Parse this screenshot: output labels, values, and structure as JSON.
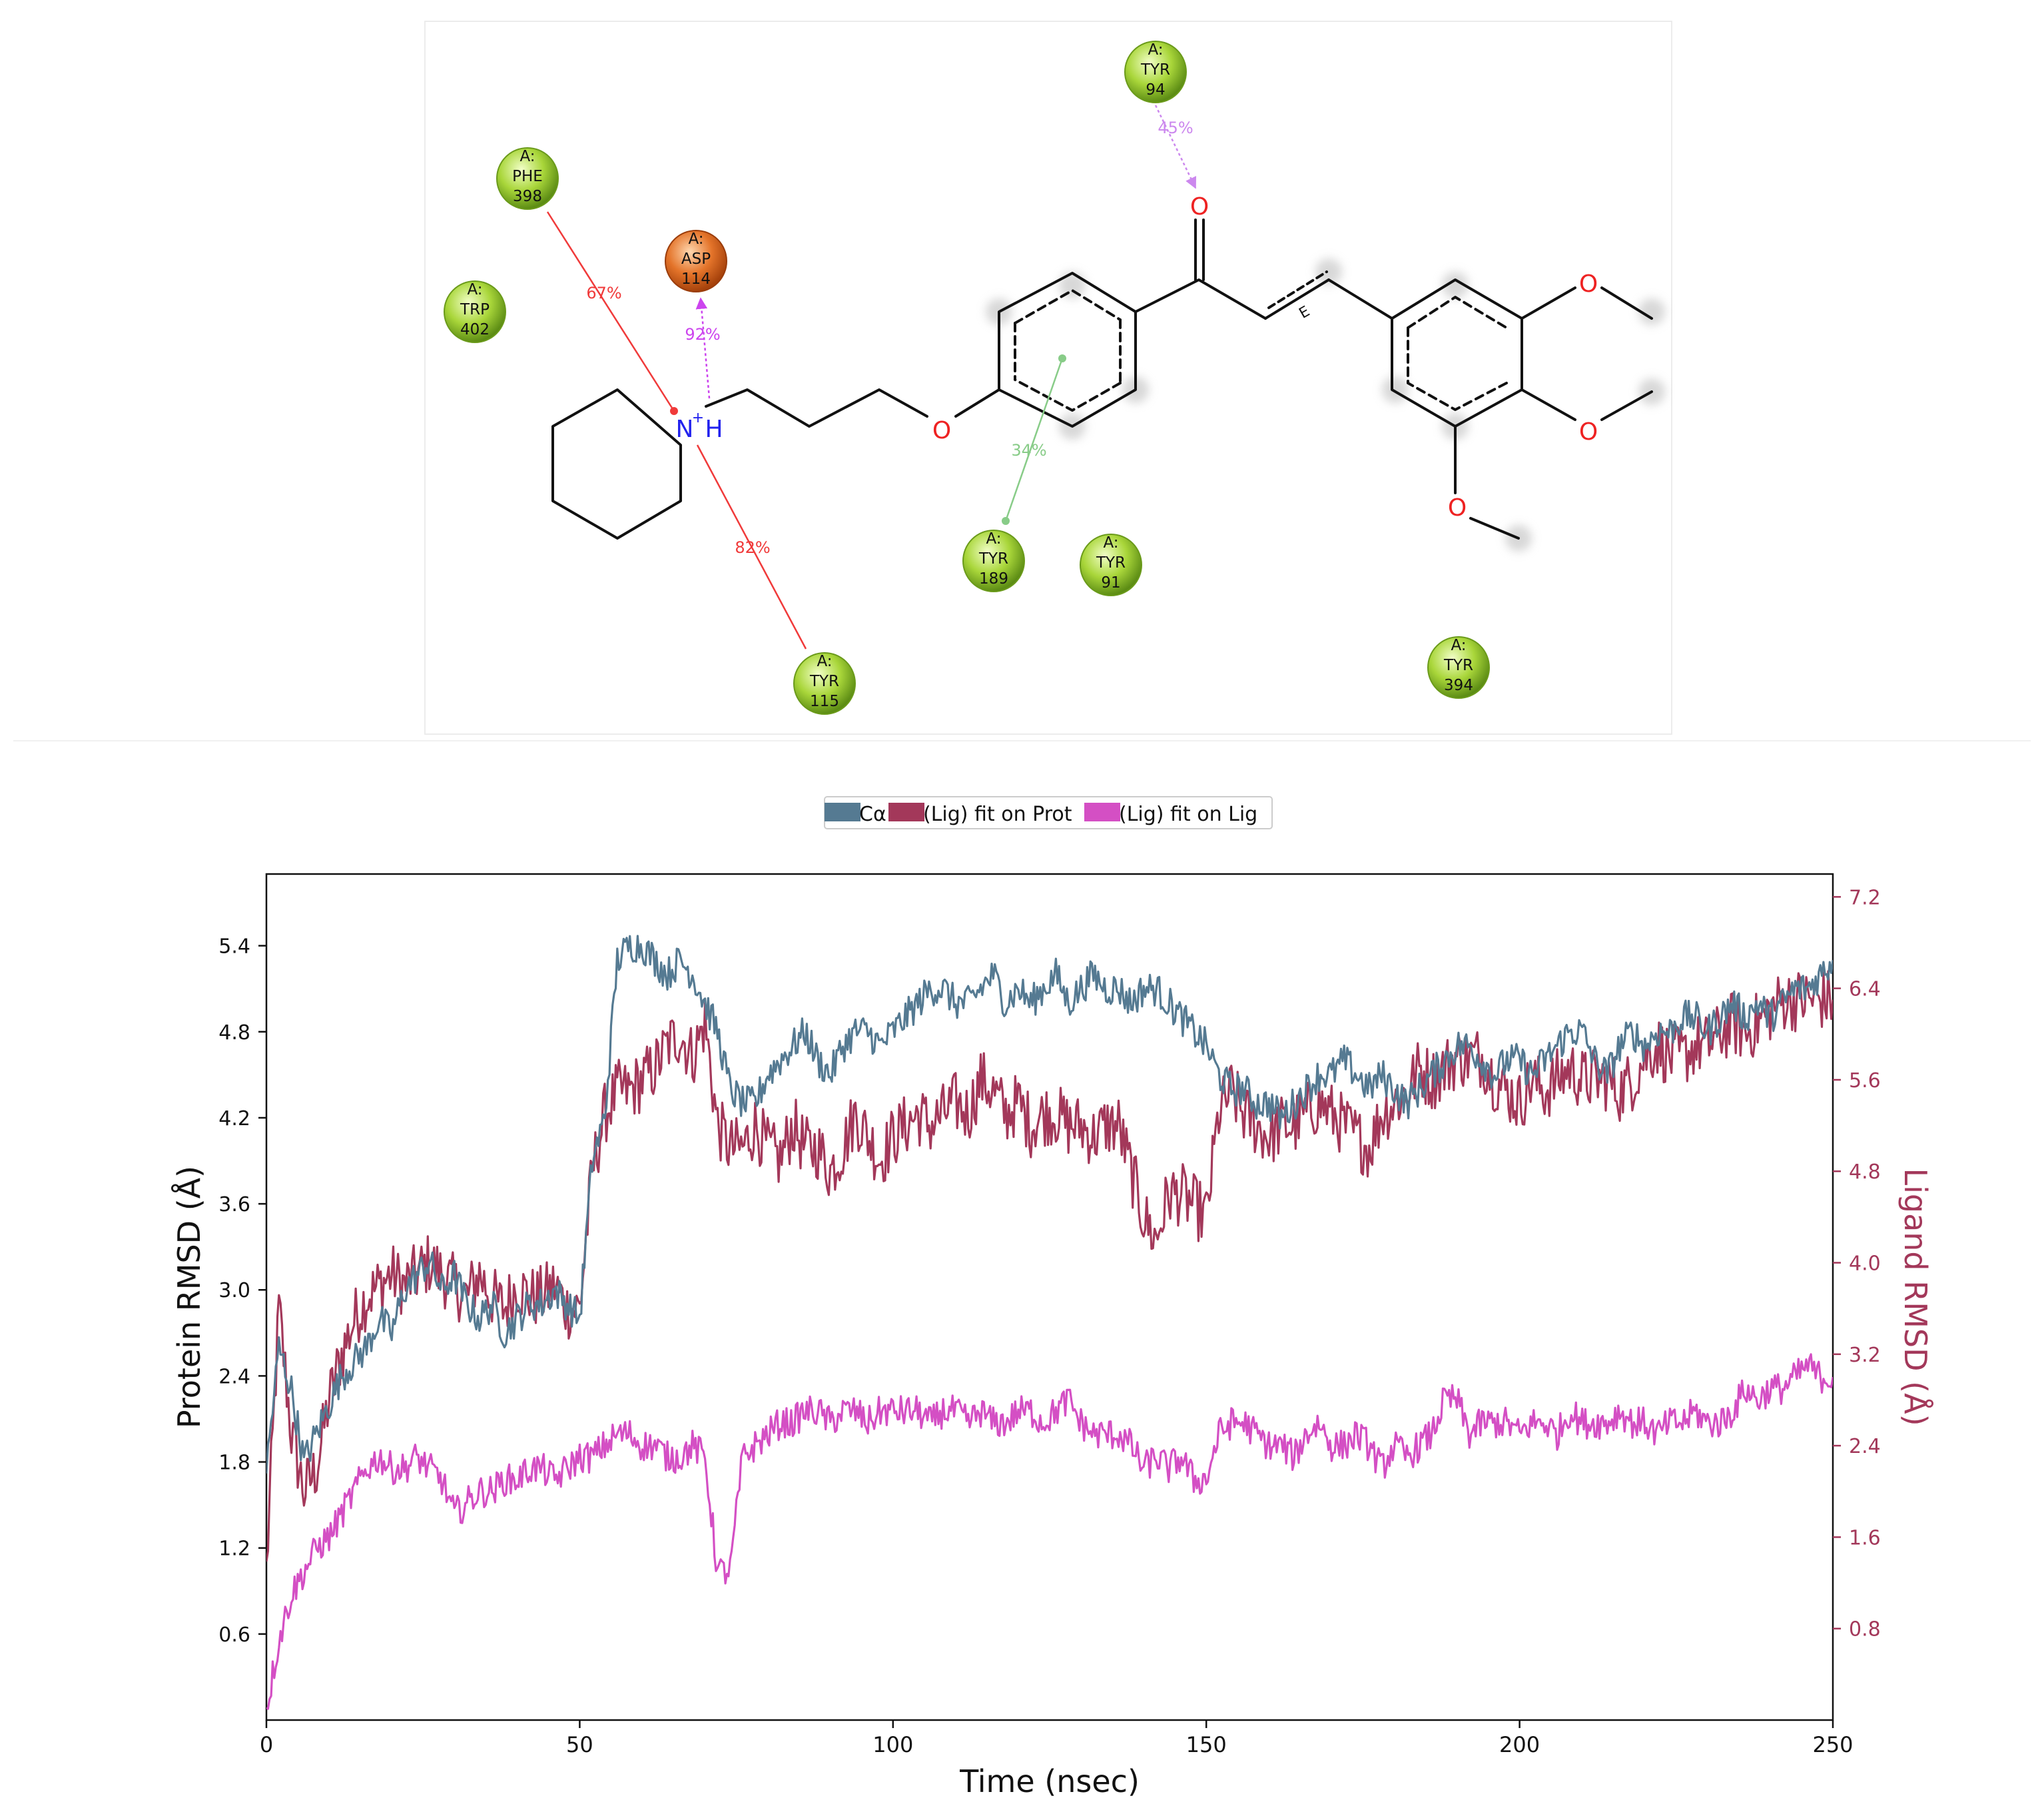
{
  "interaction_diagram": {
    "residues": [
      {
        "chain": "A:",
        "name": "TYR",
        "number": "94",
        "kind": "hydrophobic"
      },
      {
        "chain": "A:",
        "name": "PHE",
        "number": "398",
        "kind": "hydrophobic"
      },
      {
        "chain": "A:",
        "name": "ASP",
        "number": "114",
        "kind": "negative"
      },
      {
        "chain": "A:",
        "name": "TRP",
        "number": "402",
        "kind": "hydrophobic"
      },
      {
        "chain": "A:",
        "name": "TYR",
        "number": "189",
        "kind": "hydrophobic"
      },
      {
        "chain": "A:",
        "name": "TYR",
        "number": "91",
        "kind": "hydrophobic"
      },
      {
        "chain": "A:",
        "name": "TYR",
        "number": "115",
        "kind": "hydrophobic"
      },
      {
        "chain": "A:",
        "name": "TYR",
        "number": "394",
        "kind": "hydrophobic"
      }
    ],
    "interactions": [
      {
        "label": "45%",
        "type": "h-bond",
        "from": "TYR 94",
        "to": "O (carbonyl)"
      },
      {
        "label": "67%",
        "type": "pi-cation",
        "from": "PHE 398",
        "to": "N+H"
      },
      {
        "label": "92%",
        "type": "salt-bridge",
        "from": "N+H",
        "to": "ASP 114"
      },
      {
        "label": "82%",
        "type": "pi-cation",
        "from": "TYR 115",
        "to": "N+H"
      },
      {
        "label": "34%",
        "type": "pi-pi",
        "from": "TYR 189",
        "to": "phenyl ring"
      }
    ],
    "atom_labels": {
      "n": "N",
      "n_charge": "+",
      "n_h": "H",
      "oxygen": "O",
      "stereo": "E"
    },
    "colors": {
      "hydrophobic": "#9ccc28",
      "negative": "#e06a1e",
      "pi_cation": "#f03a3a",
      "salt_bridge": "#cc44ee",
      "hbond": "#cc88ee",
      "pi_pi": "#88cc88",
      "oxygen": "#ee2222",
      "nitrogen": "#2222ee"
    }
  },
  "chart_data": {
    "type": "line",
    "xlabel": "Time (nsec)",
    "ylabel_left": "Protein RMSD (Å)",
    "ylabel_right": "Ligand RMSD (Å)",
    "xlim": [
      0,
      250
    ],
    "ylim_left": [
      0.0,
      5.9
    ],
    "ylim_right": [
      0.0,
      7.4
    ],
    "x_ticks": [
      "0",
      "50",
      "100",
      "150",
      "200",
      "250"
    ],
    "y_ticks_left": [
      "0.6",
      "1.2",
      "1.8",
      "2.4",
      "3.0",
      "3.6",
      "4.2",
      "4.8",
      "5.4"
    ],
    "y_ticks_right": [
      "0.8",
      "1.6",
      "2.4",
      "3.2",
      "4.0",
      "4.8",
      "5.6",
      "6.4",
      "7.2"
    ],
    "legend": {
      "placement": "top-center",
      "entries": [
        "Cα",
        "(Lig) fit on Prot",
        "(Lig) fit on Lig"
      ]
    },
    "grid": false,
    "series": [
      {
        "name": "Cα",
        "axis": "left",
        "color": "#557a92",
        "x": [
          0,
          2,
          4,
          6,
          8,
          10,
          12,
          14,
          16,
          18,
          20,
          22,
          24,
          26,
          28,
          30,
          32,
          34,
          36,
          38,
          40,
          42,
          44,
          46,
          48,
          50,
          52,
          54,
          56,
          58,
          60,
          62,
          64,
          66,
          68,
          70,
          72,
          74,
          76,
          78,
          80,
          82,
          84,
          86,
          88,
          90,
          92,
          94,
          96,
          98,
          100,
          102,
          104,
          106,
          108,
          110,
          112,
          114,
          116,
          118,
          120,
          122,
          124,
          126,
          128,
          130,
          132,
          134,
          136,
          138,
          140,
          142,
          144,
          146,
          148,
          150,
          152,
          154,
          156,
          158,
          160,
          162,
          164,
          166,
          168,
          170,
          172,
          174,
          176,
          178,
          180,
          182,
          184,
          186,
          188,
          190,
          192,
          194,
          196,
          198,
          200,
          202,
          204,
          206,
          208,
          210,
          212,
          214,
          216,
          218,
          220,
          222,
          224,
          226,
          228,
          230,
          232,
          234,
          236,
          238,
          240,
          242,
          244,
          246,
          248,
          250
        ],
        "y": [
          1.75,
          2.6,
          2.3,
          1.8,
          2.0,
          2.2,
          2.4,
          2.5,
          2.6,
          2.8,
          2.7,
          3.0,
          3.1,
          3.2,
          3.0,
          3.1,
          2.9,
          2.8,
          2.9,
          2.7,
          2.8,
          2.9,
          2.9,
          3.0,
          2.9,
          2.8,
          3.9,
          4.2,
          5.3,
          5.4,
          5.4,
          5.3,
          5.2,
          5.3,
          5.2,
          5.0,
          4.8,
          4.4,
          4.3,
          4.3,
          4.5,
          4.6,
          4.7,
          4.8,
          4.6,
          4.5,
          4.7,
          4.8,
          4.8,
          4.7,
          4.8,
          4.9,
          5.0,
          5.1,
          5.1,
          5.0,
          5.0,
          5.1,
          5.2,
          5.0,
          5.1,
          5.0,
          5.1,
          5.2,
          5.0,
          5.1,
          5.2,
          5.1,
          5.1,
          5.0,
          5.1,
          5.1,
          5.0,
          4.9,
          4.8,
          4.7,
          4.5,
          4.4,
          4.4,
          4.3,
          4.3,
          4.2,
          4.3,
          4.4,
          4.5,
          4.5,
          4.6,
          4.5,
          4.4,
          4.5,
          4.4,
          4.3,
          4.4,
          4.5,
          4.6,
          4.7,
          4.7,
          4.6,
          4.5,
          4.6,
          4.6,
          4.5,
          4.6,
          4.7,
          4.8,
          4.8,
          4.6,
          4.5,
          4.7,
          4.8,
          4.7,
          4.8,
          4.8,
          4.9,
          4.9,
          4.8,
          4.9,
          5.0,
          4.9,
          5.0,
          4.9,
          5.0,
          5.1,
          5.1,
          5.2,
          5.3
        ]
      },
      {
        "name": "(Lig) fit on Prot",
        "axis": "right",
        "color": "#a3385a",
        "x": [
          0,
          2,
          4,
          6,
          8,
          10,
          12,
          14,
          16,
          18,
          20,
          22,
          24,
          26,
          28,
          30,
          32,
          34,
          36,
          38,
          40,
          42,
          44,
          46,
          48,
          50,
          52,
          54,
          56,
          58,
          60,
          62,
          64,
          66,
          68,
          70,
          72,
          74,
          76,
          78,
          80,
          82,
          84,
          86,
          88,
          90,
          92,
          94,
          96,
          98,
          100,
          102,
          104,
          106,
          108,
          110,
          112,
          114,
          116,
          118,
          120,
          122,
          124,
          126,
          128,
          130,
          132,
          134,
          136,
          138,
          140,
          142,
          144,
          146,
          148,
          150,
          152,
          154,
          156,
          158,
          160,
          162,
          164,
          166,
          168,
          170,
          172,
          174,
          176,
          178,
          180,
          182,
          184,
          186,
          188,
          190,
          192,
          194,
          196,
          198,
          200,
          202,
          204,
          206,
          208,
          210,
          212,
          214,
          216,
          218,
          220,
          222,
          224,
          226,
          228,
          230,
          232,
          234,
          236,
          238,
          240,
          242,
          244,
          246,
          248,
          250
        ],
        "y": [
          1.3,
          3.6,
          2.5,
          2.0,
          2.2,
          2.8,
          3.2,
          3.5,
          3.7,
          3.8,
          3.9,
          3.8,
          3.9,
          4.0,
          3.9,
          3.8,
          3.7,
          3.9,
          3.7,
          3.6,
          3.8,
          3.7,
          3.7,
          3.8,
          3.6,
          3.6,
          4.8,
          5.3,
          5.5,
          5.5,
          5.6,
          5.7,
          5.9,
          6.0,
          5.8,
          6.1,
          5.2,
          5.0,
          5.0,
          5.2,
          5.0,
          4.9,
          5.2,
          5.0,
          5.0,
          4.8,
          5.0,
          5.3,
          5.1,
          4.9,
          5.1,
          5.2,
          5.3,
          5.2,
          5.3,
          5.4,
          5.3,
          5.6,
          5.5,
          5.3,
          5.4,
          5.2,
          5.3,
          5.3,
          5.2,
          5.2,
          5.1,
          5.2,
          5.2,
          4.8,
          4.4,
          4.2,
          4.6,
          4.6,
          4.5,
          4.4,
          5.3,
          5.5,
          5.3,
          5.2,
          5.1,
          5.2,
          5.2,
          5.3,
          5.4,
          5.3,
          5.2,
          5.1,
          5.0,
          5.3,
          5.4,
          5.5,
          5.7,
          5.6,
          5.7,
          5.8,
          5.8,
          5.8,
          5.6,
          5.5,
          5.4,
          5.6,
          5.5,
          5.6,
          5.7,
          5.6,
          5.6,
          5.6,
          5.5,
          5.6,
          5.8,
          5.9,
          5.8,
          5.8,
          5.9,
          5.9,
          6.0,
          6.1,
          6.0,
          6.1,
          6.2,
          6.3,
          6.3,
          6.3,
          6.3,
          6.3
        ]
      },
      {
        "name": "(Lig) fit on Lig",
        "axis": "right",
        "color": "#d44fc4",
        "x": [
          0,
          2,
          4,
          6,
          8,
          10,
          12,
          14,
          16,
          18,
          20,
          22,
          24,
          26,
          28,
          30,
          32,
          34,
          36,
          38,
          40,
          42,
          44,
          46,
          48,
          50,
          52,
          54,
          56,
          58,
          60,
          62,
          64,
          66,
          68,
          70,
          72,
          74,
          76,
          78,
          80,
          82,
          84,
          86,
          88,
          90,
          92,
          94,
          96,
          98,
          100,
          102,
          104,
          106,
          108,
          110,
          112,
          114,
          116,
          118,
          120,
          122,
          124,
          126,
          128,
          130,
          132,
          134,
          136,
          138,
          140,
          142,
          144,
          146,
          148,
          150,
          152,
          154,
          156,
          158,
          160,
          162,
          164,
          166,
          168,
          170,
          172,
          174,
          176,
          178,
          180,
          182,
          184,
          186,
          188,
          190,
          192,
          194,
          196,
          198,
          200,
          202,
          204,
          206,
          208,
          210,
          212,
          214,
          216,
          218,
          220,
          222,
          224,
          226,
          228,
          230,
          232,
          234,
          236,
          238,
          240,
          242,
          244,
          246,
          248,
          250
        ],
        "y": [
          0.1,
          0.7,
          1.1,
          1.3,
          1.5,
          1.6,
          1.8,
          2.0,
          2.2,
          2.3,
          2.2,
          2.2,
          2.3,
          2.2,
          2.1,
          1.8,
          1.9,
          2.0,
          2.0,
          2.1,
          2.1,
          2.2,
          2.2,
          2.1,
          2.2,
          2.3,
          2.3,
          2.4,
          2.5,
          2.5,
          2.4,
          2.4,
          2.3,
          2.3,
          2.4,
          2.3,
          1.3,
          1.3,
          2.3,
          2.4,
          2.5,
          2.6,
          2.6,
          2.7,
          2.7,
          2.6,
          2.7,
          2.7,
          2.6,
          2.7,
          2.7,
          2.7,
          2.7,
          2.6,
          2.7,
          2.7,
          2.6,
          2.7,
          2.6,
          2.6,
          2.7,
          2.7,
          2.6,
          2.7,
          2.8,
          2.6,
          2.5,
          2.5,
          2.5,
          2.4,
          2.2,
          2.3,
          2.2,
          2.3,
          2.1,
          2.1,
          2.5,
          2.6,
          2.6,
          2.5,
          2.4,
          2.4,
          2.3,
          2.5,
          2.6,
          2.4,
          2.4,
          2.5,
          2.4,
          2.2,
          2.4,
          2.3,
          2.4,
          2.5,
          2.8,
          2.8,
          2.5,
          2.6,
          2.6,
          2.6,
          2.5,
          2.6,
          2.6,
          2.5,
          2.7,
          2.6,
          2.6,
          2.6,
          2.7,
          2.6,
          2.6,
          2.5,
          2.6,
          2.6,
          2.7,
          2.6,
          2.6,
          2.7,
          2.9,
          2.8,
          2.9,
          2.9,
          3.0,
          3.1,
          3.0,
          3.0
        ]
      }
    ]
  }
}
